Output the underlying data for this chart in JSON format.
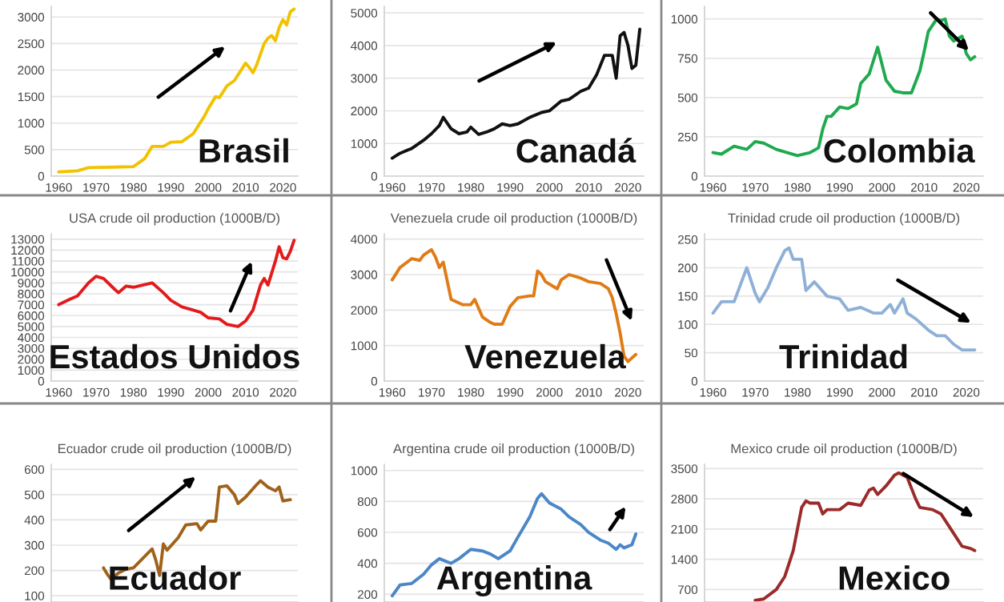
{
  "chart_data": [
    {
      "type": "line",
      "x": [
        1960,
        1965,
        1968,
        1975,
        1980,
        1983,
        1985,
        1988,
        1990,
        1993,
        1996,
        1999,
        2000,
        2002,
        2003,
        2005,
        2007,
        2009,
        2010,
        2011,
        2012,
        2013,
        2014,
        2015,
        2016,
        2017,
        2018,
        2019,
        2020,
        2021,
        2022,
        2023
      ],
      "series": [
        {
          "color": "#f2c200",
          "values": [
            80,
            100,
            160,
            170,
            180,
            330,
            560,
            560,
            640,
            650,
            800,
            1130,
            1270,
            1500,
            1480,
            1700,
            1800,
            2020,
            2130,
            2050,
            1950,
            2100,
            2300,
            2500,
            2600,
            2650,
            2550,
            2800,
            2950,
            2850,
            3100,
            3150
          ]
        }
      ],
      "xlim": [
        1958,
        2024
      ],
      "xticks": [
        1960,
        1970,
        1980,
        1990,
        2000,
        2010,
        2020
      ],
      "ylim": [
        0,
        3200
      ],
      "yticks": [
        0,
        500,
        1000,
        1500,
        2000,
        2500,
        3000
      ],
      "grid": "y",
      "annotations": [
        "Brasil"
      ]
    },
    {
      "type": "line",
      "x": [
        1960,
        1962,
        1965,
        1968,
        1970,
        1972,
        1973,
        1975,
        1977,
        1979,
        1980,
        1982,
        1984,
        1986,
        1988,
        1990,
        1992,
        1995,
        1998,
        2000,
        2003,
        2005,
        2008,
        2010,
        2012,
        2014,
        2016,
        2017,
        2018,
        2019,
        2020,
        2021,
        2022,
        2023
      ],
      "series": [
        {
          "color": "#111111",
          "values": [
            550,
            700,
            850,
            1100,
            1300,
            1550,
            1800,
            1450,
            1300,
            1350,
            1500,
            1280,
            1350,
            1450,
            1600,
            1550,
            1600,
            1800,
            1950,
            2000,
            2300,
            2350,
            2600,
            2700,
            3100,
            3700,
            3700,
            3000,
            4300,
            4400,
            4000,
            3300,
            3400,
            4500
          ]
        }
      ],
      "xlim": [
        1958,
        2024
      ],
      "xticks": [
        1960,
        1970,
        1980,
        1990,
        2000,
        2010,
        2020
      ],
      "ylim": [
        0,
        5200
      ],
      "yticks": [
        0,
        1000,
        2000,
        3000,
        4000,
        5000
      ],
      "grid": "y",
      "annotations": [
        "Canadá"
      ]
    },
    {
      "type": "line",
      "x": [
        1960,
        1962,
        1965,
        1968,
        1970,
        1972,
        1975,
        1980,
        1983,
        1985,
        1986,
        1987,
        1988,
        1990,
        1992,
        1994,
        1995,
        1997,
        1999,
        2001,
        2003,
        2005,
        2007,
        2009,
        2010,
        2011,
        2013,
        2014,
        2015,
        2016,
        2017,
        2019,
        2020,
        2021,
        2022
      ],
      "series": [
        {
          "color": "#1faa4f",
          "values": [
            150,
            140,
            190,
            170,
            220,
            210,
            170,
            130,
            150,
            180,
            300,
            380,
            380,
            440,
            430,
            460,
            590,
            650,
            820,
            610,
            540,
            530,
            530,
            670,
            790,
            920,
            1000,
            990,
            1000,
            890,
            860,
            890,
            780,
            740,
            760
          ]
        }
      ],
      "xlim": [
        1958,
        2024
      ],
      "xticks": [
        1960,
        1970,
        1980,
        1990,
        2000,
        2010,
        2020
      ],
      "ylim": [
        0,
        1080
      ],
      "yticks": [
        0,
        250,
        500,
        750,
        1000
      ],
      "grid": "y",
      "annotations": [
        "Colombia"
      ]
    },
    {
      "type": "line",
      "title": "USA crude oil production (1000B/D)",
      "x": [
        1960,
        1963,
        1965,
        1968,
        1970,
        1972,
        1975,
        1976,
        1978,
        1980,
        1985,
        1988,
        1990,
        1993,
        1996,
        1998,
        2000,
        2003,
        2005,
        2008,
        2010,
        2012,
        2014,
        2015,
        2016,
        2018,
        2019,
        2020,
        2021,
        2022,
        2023
      ],
      "series": [
        {
          "color": "#e31a1c",
          "values": [
            7000,
            7500,
            7800,
            9000,
            9600,
            9400,
            8400,
            8100,
            8700,
            8600,
            9000,
            8100,
            7400,
            6800,
            6500,
            6300,
            5800,
            5700,
            5200,
            5000,
            5500,
            6500,
            8800,
            9400,
            8800,
            11000,
            12300,
            11300,
            11200,
            11900,
            12900
          ]
        }
      ],
      "xlim": [
        1958,
        2024
      ],
      "xticks": [
        1960,
        1970,
        1980,
        1990,
        2000,
        2010,
        2020
      ],
      "ylim": [
        0,
        13500
      ],
      "yticks": [
        0,
        1000,
        2000,
        3000,
        4000,
        5000,
        6000,
        7000,
        8000,
        9000,
        10000,
        11000,
        12000,
        13000
      ],
      "grid": "y",
      "annotations": [
        "Estados Unidos"
      ]
    },
    {
      "type": "line",
      "title": "Venezuela crude oil production (1000B/D)",
      "x": [
        1960,
        1962,
        1965,
        1967,
        1968,
        1970,
        1971,
        1972,
        1973,
        1975,
        1978,
        1980,
        1981,
        1983,
        1985,
        1986,
        1988,
        1990,
        1992,
        1995,
        1996,
        1997,
        1998,
        1999,
        2002,
        2003,
        2005,
        2008,
        2010,
        2013,
        2015,
        2016,
        2017,
        2018,
        2019,
        2020,
        2021,
        2022
      ],
      "series": [
        {
          "color": "#e07b16",
          "values": [
            2850,
            3200,
            3450,
            3400,
            3550,
            3700,
            3500,
            3200,
            3350,
            2300,
            2150,
            2150,
            2300,
            1800,
            1650,
            1600,
            1600,
            2100,
            2350,
            2400,
            2400,
            3100,
            3000,
            2800,
            2600,
            2850,
            3000,
            2900,
            2800,
            2750,
            2600,
            2350,
            1900,
            1350,
            700,
            550,
            650,
            750
          ]
        }
      ],
      "xlim": [
        1958,
        2024
      ],
      "xticks": [
        1960,
        1970,
        1980,
        1990,
        2000,
        2010,
        2020
      ],
      "ylim": [
        0,
        4150
      ],
      "yticks": [
        0,
        1000,
        2000,
        3000,
        4000
      ],
      "grid": "y",
      "annotations": [
        "Venezuela"
      ]
    },
    {
      "type": "line",
      "title": "Trinidad crude oil production (1000B/D)",
      "x": [
        1960,
        1962,
        1965,
        1968,
        1970,
        1971,
        1973,
        1975,
        1977,
        1978,
        1979,
        1981,
        1982,
        1984,
        1987,
        1990,
        1992,
        1995,
        1998,
        2000,
        2002,
        2003,
        2005,
        2006,
        2008,
        2011,
        2013,
        2015,
        2017,
        2019,
        2022
      ],
      "series": [
        {
          "color": "#8fb0d6",
          "values": [
            120,
            140,
            140,
            200,
            155,
            140,
            165,
            200,
            230,
            235,
            215,
            215,
            160,
            175,
            150,
            145,
            125,
            130,
            120,
            120,
            135,
            120,
            145,
            120,
            110,
            90,
            80,
            80,
            65,
            55,
            55
          ]
        }
      ],
      "xlim": [
        1958,
        2024
      ],
      "xticks": [
        1960,
        1970,
        1980,
        1990,
        2000,
        2010,
        2020
      ],
      "ylim": [
        0,
        260
      ],
      "yticks": [
        0,
        50,
        100,
        150,
        200,
        250
      ],
      "grid": "y",
      "annotations": [
        "Trinidad"
      ]
    },
    {
      "type": "line",
      "title": "Ecuador crude oil production (1000B/D)",
      "x": [
        1972,
        1973,
        1974,
        1976,
        1978,
        1980,
        1982,
        1985,
        1986,
        1987,
        1988,
        1989,
        1992,
        1994,
        1997,
        1998,
        2000,
        2002,
        2003,
        2005,
        2007,
        2008,
        2010,
        2013,
        2014,
        2016,
        2018,
        2019,
        2020,
        2022
      ],
      "series": [
        {
          "color": "#a0621a",
          "values": [
            210,
            185,
            165,
            190,
            205,
            210,
            240,
            285,
            240,
            180,
            305,
            280,
            330,
            380,
            385,
            360,
            395,
            395,
            530,
            535,
            500,
            465,
            490,
            540,
            555,
            530,
            515,
            530,
            475,
            480
          ]
        }
      ],
      "xlim": [
        1958,
        2024
      ],
      "ylim": [
        75,
        620
      ],
      "yticks": [
        100,
        200,
        300,
        400,
        500,
        600
      ],
      "grid": "y",
      "tick_labels": "y",
      "annotations": [
        "Ecuador"
      ]
    },
    {
      "type": "line",
      "title": "Argentina crude oil production (1000B/D)",
      "x": [
        1960,
        1962,
        1965,
        1968,
        1970,
        1972,
        1975,
        1977,
        1980,
        1983,
        1985,
        1987,
        1990,
        1992,
        1995,
        1997,
        1998,
        2000,
        2003,
        2005,
        2008,
        2010,
        2013,
        2015,
        2017,
        2018,
        2019,
        2020,
        2021,
        2022
      ],
      "series": [
        {
          "color": "#4a86c8",
          "values": [
            190,
            260,
            270,
            330,
            390,
            430,
            400,
            430,
            490,
            480,
            460,
            430,
            480,
            570,
            700,
            820,
            850,
            790,
            750,
            700,
            650,
            600,
            550,
            530,
            490,
            520,
            500,
            510,
            520,
            590
          ]
        }
      ],
      "xlim": [
        1958,
        2024
      ],
      "ylim": [
        150,
        1040
      ],
      "yticks": [
        200,
        400,
        600,
        800,
        1000
      ],
      "grid": "y",
      "tick_labels": "y",
      "annotations": [
        "Argentina"
      ]
    },
    {
      "type": "line",
      "title": "Mexico crude oil production (1000B/D)",
      "x": [
        1970,
        1972,
        1975,
        1977,
        1979,
        1981,
        1982,
        1983,
        1985,
        1986,
        1987,
        1990,
        1992,
        1995,
        1997,
        1998,
        1999,
        2001,
        2003,
        2004,
        2006,
        2008,
        2009,
        2012,
        2014,
        2016,
        2018,
        2019,
        2021,
        2022
      ],
      "series": [
        {
          "color": "#9b2a2a",
          "values": [
            450,
            480,
            700,
            1000,
            1600,
            2600,
            2750,
            2700,
            2700,
            2450,
            2550,
            2550,
            2700,
            2650,
            3000,
            3050,
            2900,
            3100,
            3350,
            3400,
            3300,
            2800,
            2600,
            2550,
            2450,
            2150,
            1850,
            1700,
            1650,
            1600
          ]
        }
      ],
      "xlim": [
        1958,
        2024
      ],
      "ylim": [
        410,
        3600
      ],
      "yticks": [
        700,
        1400,
        2100,
        2800,
        3500
      ],
      "grid": "y",
      "tick_labels": "y",
      "annotations": [
        "Mexico"
      ]
    }
  ]
}
